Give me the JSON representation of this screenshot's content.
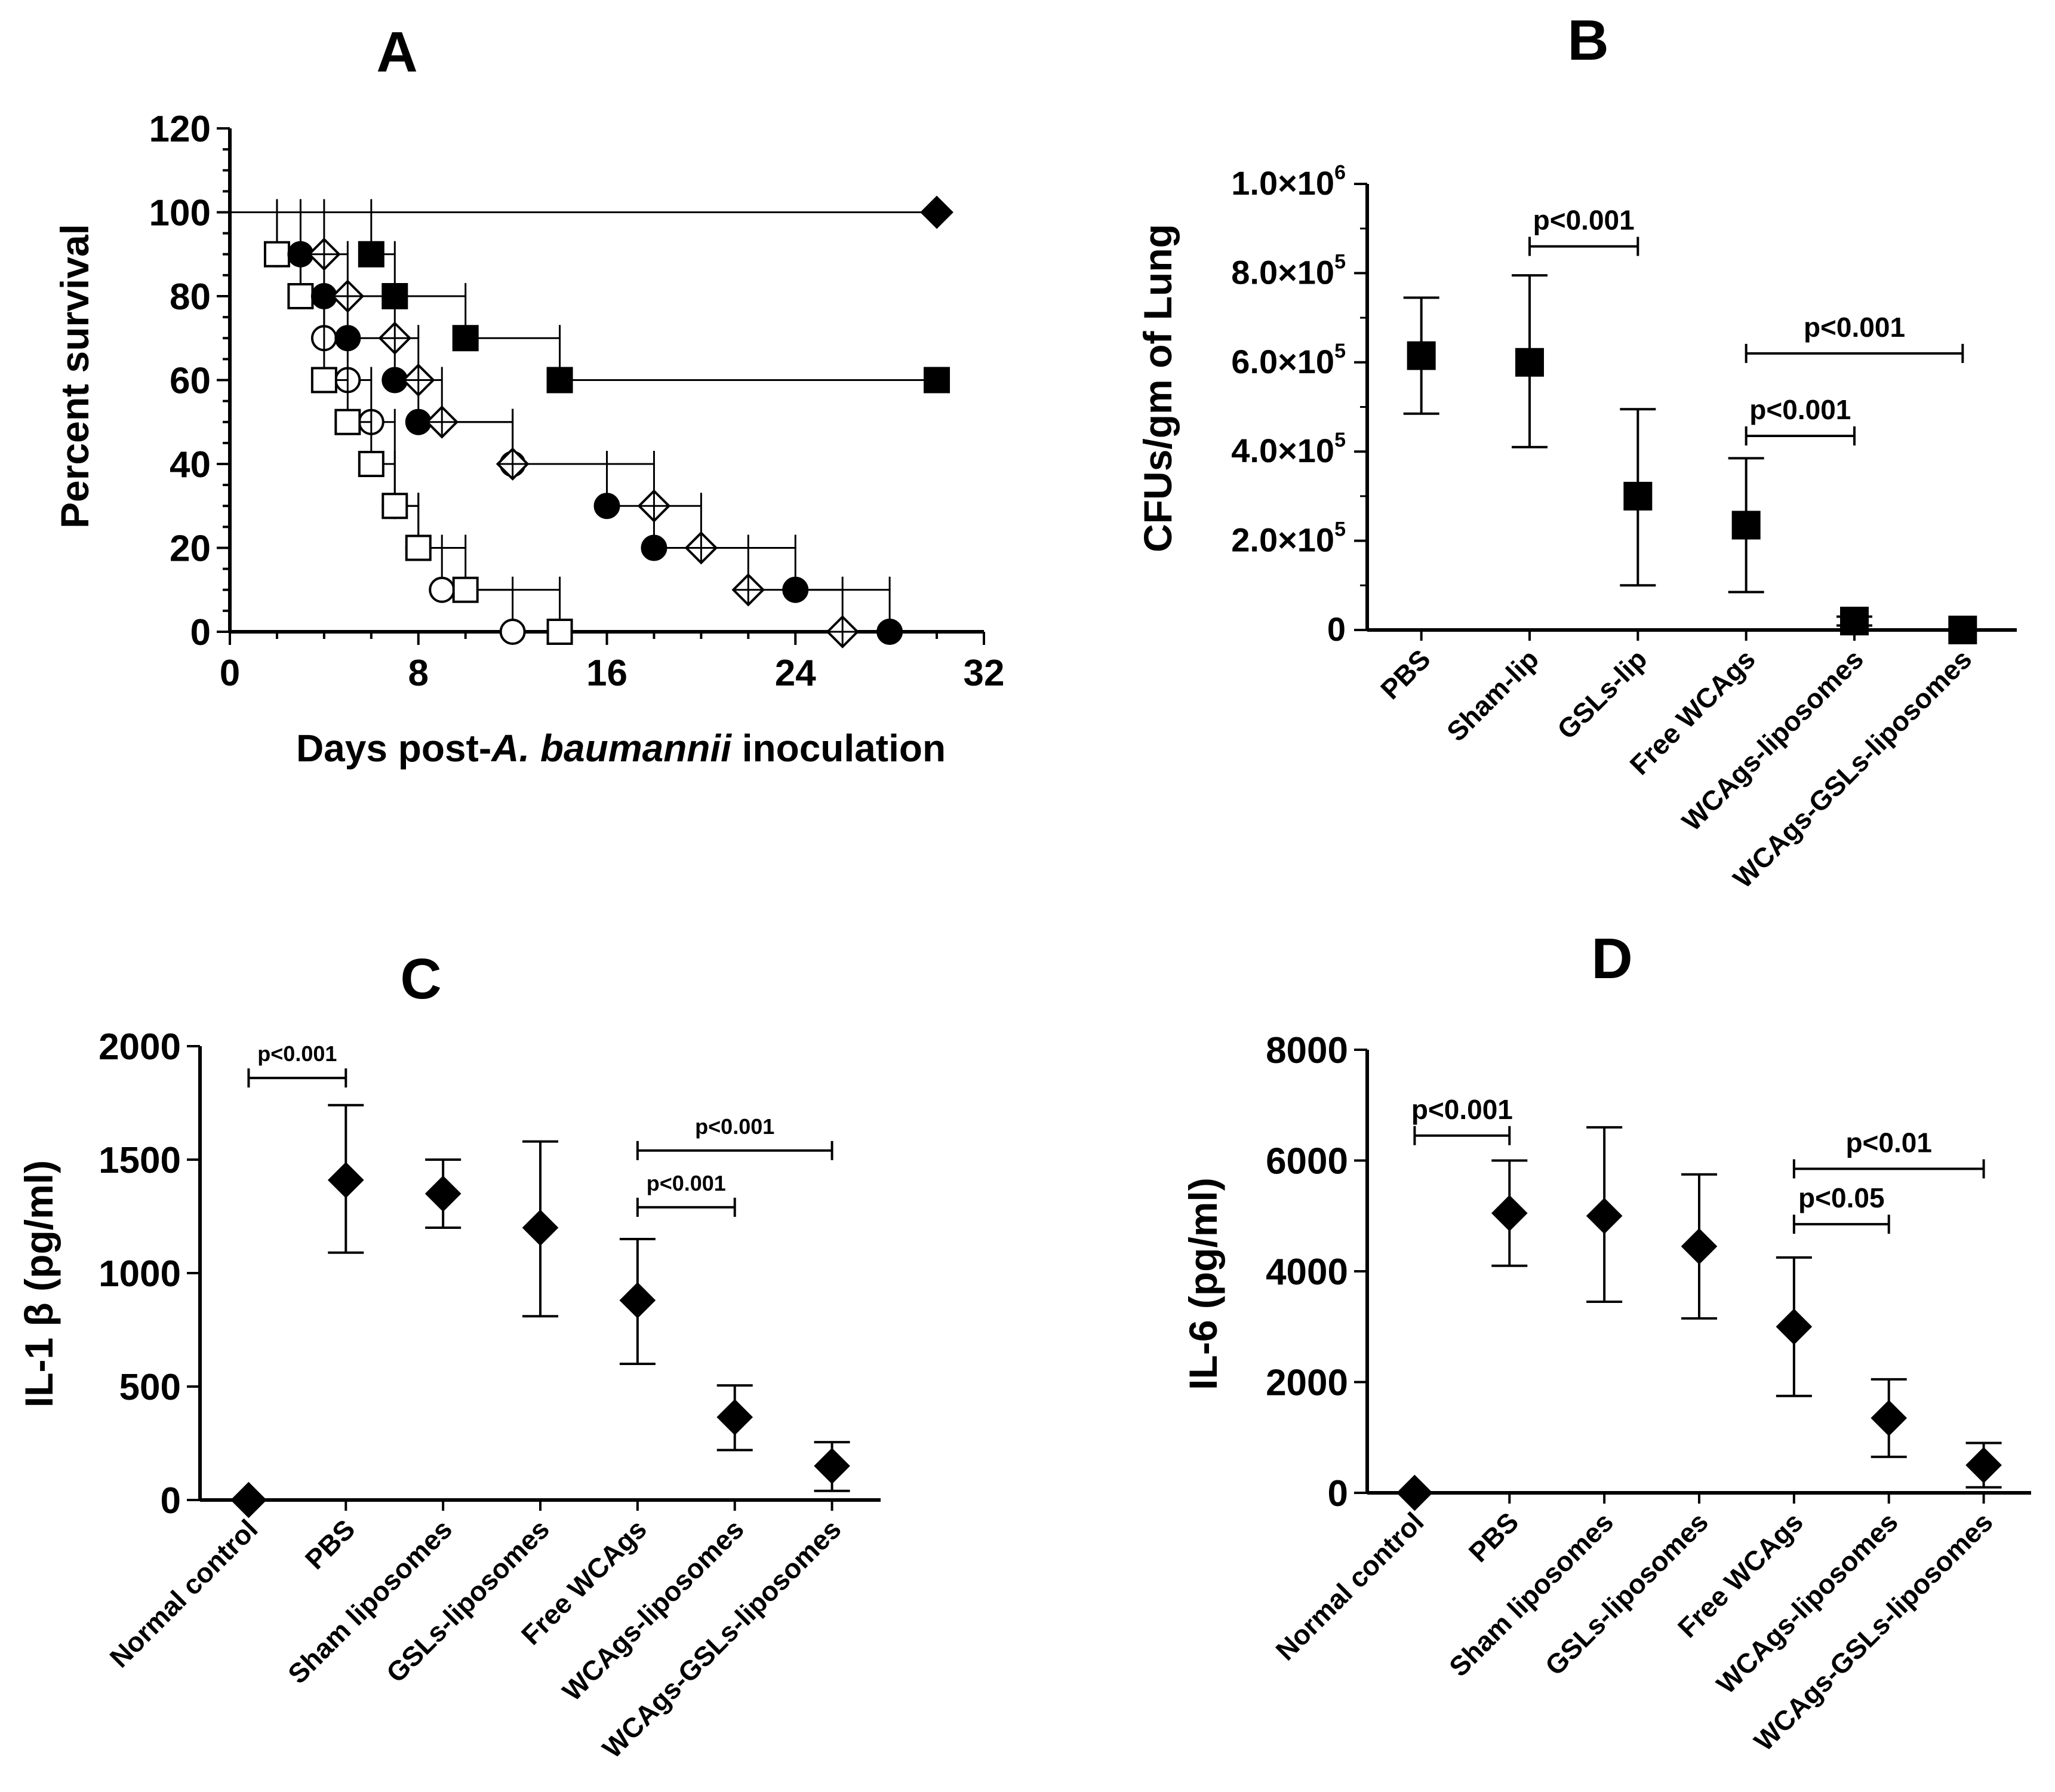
{
  "chart_data": [
    {
      "panel": "A",
      "type": "line",
      "title": "A",
      "ylabel": "Percent survival",
      "xlabel_prefix": "Days post-",
      "xlabel_species": "A. baumannii",
      "xlabel_suffix": " inoculation",
      "xlim": [
        0,
        32
      ],
      "ylim": [
        0,
        120
      ],
      "xticks": [
        "0",
        "8",
        "16",
        "24",
        "32"
      ],
      "yticks": [
        "0",
        "20",
        "40",
        "60",
        "80",
        "100",
        "120"
      ],
      "series": [
        {
          "name": "open circle",
          "marker": "circle-open",
          "steps": [
            [
              0,
              100
            ],
            [
              2,
              90
            ],
            [
              3,
              80
            ],
            [
              4,
              70
            ],
            [
              5,
              60
            ],
            [
              6,
              50
            ],
            [
              7,
              30
            ],
            [
              8,
              20
            ],
            [
              9,
              10
            ],
            [
              12,
              0
            ]
          ]
        },
        {
          "name": "open square",
          "marker": "square-open",
          "steps": [
            [
              0,
              100
            ],
            [
              2,
              90
            ],
            [
              3,
              80
            ],
            [
              4,
              60
            ],
            [
              5,
              50
            ],
            [
              6,
              40
            ],
            [
              7,
              30
            ],
            [
              8,
              20
            ],
            [
              10,
              10
            ],
            [
              14,
              0
            ]
          ]
        },
        {
          "name": "filled circle",
          "marker": "circle-filled",
          "steps": [
            [
              0,
              100
            ],
            [
              3,
              90
            ],
            [
              4,
              80
            ],
            [
              5,
              70
            ],
            [
              7,
              60
            ],
            [
              8,
              50
            ],
            [
              12,
              40
            ],
            [
              16,
              30
            ],
            [
              18,
              20
            ],
            [
              24,
              10
            ],
            [
              28,
              0
            ]
          ]
        },
        {
          "name": "crossed diamond",
          "marker": "diamond-cross",
          "steps": [
            [
              0,
              100
            ],
            [
              4,
              90
            ],
            [
              5,
              80
            ],
            [
              7,
              70
            ],
            [
              8,
              60
            ],
            [
              9,
              50
            ],
            [
              12,
              40
            ],
            [
              18,
              30
            ],
            [
              20,
              20
            ],
            [
              22,
              10
            ],
            [
              26,
              0
            ]
          ]
        },
        {
          "name": "filled square",
          "marker": "square-filled",
          "steps": [
            [
              0,
              100
            ],
            [
              6,
              90
            ],
            [
              7,
              80
            ],
            [
              10,
              70
            ],
            [
              14,
              60
            ],
            [
              30,
              60
            ]
          ]
        },
        {
          "name": "filled diamond",
          "marker": "diamond-filled",
          "steps": [
            [
              0,
              100
            ],
            [
              30,
              100
            ]
          ]
        }
      ]
    },
    {
      "panel": "B",
      "type": "scatter",
      "title": "B",
      "ylabel": "CFUs/gm of Lung",
      "ylim": [
        0,
        1000000
      ],
      "ytick_labels": [
        {
          "value": 0,
          "mant": "0",
          "exp": ""
        },
        {
          "value": 200000,
          "mant": "2.0×10",
          "exp": "5"
        },
        {
          "value": 400000,
          "mant": "4.0×10",
          "exp": "5"
        },
        {
          "value": 600000,
          "mant": "6.0×10",
          "exp": "5"
        },
        {
          "value": 800000,
          "mant": "8.0×10",
          "exp": "5"
        },
        {
          "value": 1000000,
          "mant": "1.0×10",
          "exp": "6"
        }
      ],
      "categories": [
        "PBS",
        "Sham-lip",
        "GSLs-lip",
        "Free WCAgs",
        "WCAgs-liposomes",
        "WCAgs-GSLs-liposomes"
      ],
      "means": [
        615000,
        600000,
        300000,
        235000,
        20000,
        0
      ],
      "err_low": [
        485000,
        410000,
        100000,
        85000,
        10000,
        0
      ],
      "err_high": [
        745000,
        795000,
        495000,
        385000,
        30000,
        0
      ],
      "comparisons": [
        {
          "from": 1,
          "to": 2,
          "level": 860000,
          "label": "p<0.001"
        },
        {
          "from": 3,
          "to": 5,
          "level": 620000,
          "label": "p<0.001"
        },
        {
          "from": 3,
          "to": 4,
          "level": 435000,
          "label": "p<0.001"
        }
      ]
    },
    {
      "panel": "C",
      "type": "scatter",
      "title": "C",
      "ylabel": "IL-1 β (pg/ml)",
      "ylim": [
        0,
        2000
      ],
      "yticks": [
        "0",
        "500",
        "1000",
        "1500",
        "2000"
      ],
      "categories": [
        "Normal control",
        "PBS",
        "Sham liposomes",
        "GSLs-liposomes",
        "Free WCAgs",
        "WCAgs-liposomes",
        "WCAgs-GSLs-liposomes"
      ],
      "means": [
        0,
        1410,
        1350,
        1200,
        880,
        365,
        150
      ],
      "err_low": [
        0,
        1090,
        1200,
        810,
        600,
        220,
        40
      ],
      "err_high": [
        0,
        1740,
        1500,
        1580,
        1150,
        505,
        255
      ],
      "comparisons": [
        {
          "from": 0,
          "to": 1,
          "level": 1860,
          "label": "p<0.001"
        },
        {
          "from": 4,
          "to": 6,
          "level": 1540,
          "label": "p<0.001"
        },
        {
          "from": 4,
          "to": 5,
          "level": 1290,
          "label": "p<0.001"
        }
      ]
    },
    {
      "panel": "D",
      "type": "scatter",
      "title": "D",
      "ylabel": "IL-6 (pg/ml)",
      "ylim": [
        0,
        8000
      ],
      "yticks": [
        "0",
        "2000",
        "4000",
        "6000",
        "8000"
      ],
      "categories": [
        "Normal control",
        "PBS",
        "Sham liposomes",
        "GSLs-liposomes",
        "Free WCAgs",
        "WCAgs-liposomes",
        "WCAgs-GSLs-liposomes"
      ],
      "means": [
        0,
        5050,
        5000,
        4450,
        3000,
        1350,
        500
      ],
      "err_low": [
        0,
        4100,
        3450,
        3150,
        1750,
        650,
        100
      ],
      "err_high": [
        0,
        6000,
        6600,
        5750,
        4250,
        2050,
        900
      ],
      "comparisons": [
        {
          "from": 0,
          "to": 1,
          "level": 6450,
          "label": "p<0.001"
        },
        {
          "from": 4,
          "to": 6,
          "level": 5850,
          "label": "p<0.01"
        },
        {
          "from": 4,
          "to": 5,
          "level": 4850,
          "label": "p<0.05"
        }
      ]
    }
  ]
}
